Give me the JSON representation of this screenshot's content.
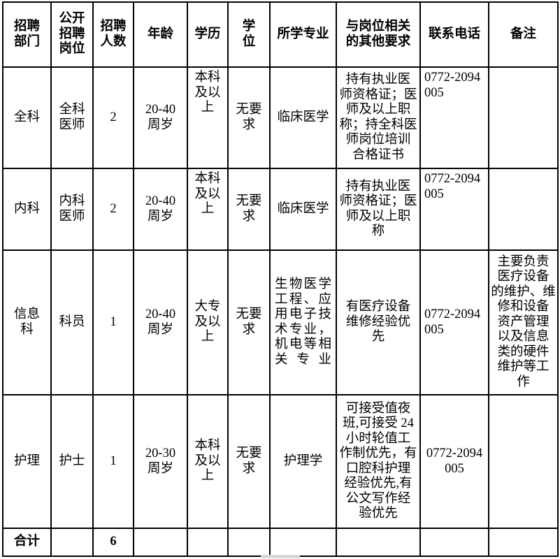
{
  "colors": {
    "border": "#000000",
    "background": "#ffffff",
    "text": "#000000"
  },
  "table": {
    "columns": [
      "招聘\n部门",
      "公开\n招聘\n岗位",
      "招聘\n人数",
      "年龄",
      "学历",
      "学\n位",
      "所学专业",
      "与岗位相关\n的其他要求",
      "联系电话",
      "备注"
    ],
    "rows": [
      {
        "cells": [
          {
            "text": "全科"
          },
          {
            "text": "全科\n医师"
          },
          {
            "text": "2"
          },
          {
            "text": "20-40\n周岁"
          },
          {
            "text": "本科\n及以\n上",
            "valign": "top"
          },
          {
            "text": "无要\n求"
          },
          {
            "text": "临床医学"
          },
          {
            "text": "持有执业医\n师资格证；医\n师及以上职\n称；持全科医\n师岗位培训\n合格证书"
          },
          {
            "text": "0772-2094\n005",
            "align": "left",
            "valign": "top"
          },
          {
            "text": ""
          }
        ]
      },
      {
        "cells": [
          {
            "text": "内科"
          },
          {
            "text": "内科\n医师"
          },
          {
            "text": "2"
          },
          {
            "text": "20-40\n周岁"
          },
          {
            "text": "本科\n及以\n上",
            "valign": "top"
          },
          {
            "text": "无要\n求"
          },
          {
            "text": "临床医学"
          },
          {
            "text": "持有执业医\n师资格证；医\n师及以上职\n称"
          },
          {
            "text": "0772-2094\n005",
            "align": "left",
            "valign": "top"
          },
          {
            "text": ""
          }
        ]
      },
      {
        "cells": [
          {
            "text": "信息\n科"
          },
          {
            "text": "科员"
          },
          {
            "text": "1"
          },
          {
            "text": "20-40\n周岁"
          },
          {
            "text": "大专\n及以\n上"
          },
          {
            "text": "无要\n求"
          },
          {
            "text": "生物医学\n工程、应\n用电子技\n术专业，\n机电等相\n关专业",
            "justify": true
          },
          {
            "text": "有医疗设备\n维修经验优\n先"
          },
          {
            "text": "0772-2094\n005",
            "align": "left"
          },
          {
            "text": "主要负责\n医疗设备\n的维护、维\n修和设备\n资产管理\n以及信息\n类的硬件\n维护等工\n作"
          }
        ]
      },
      {
        "cells": [
          {
            "text": "护理"
          },
          {
            "text": "护士"
          },
          {
            "text": "1"
          },
          {
            "text": "20-30\n周岁"
          },
          {
            "text": "本科\n及以\n上"
          },
          {
            "text": "无要\n求"
          },
          {
            "text": "护理学"
          },
          {
            "text": "可接受值夜\n班,可接受 24\n小时轮值工\n作制优先，有\n口腔科护理\n经验优先,有\n公文写作经\n验优先"
          },
          {
            "text": "0772-2094\n005"
          },
          {
            "text": ""
          }
        ]
      },
      {
        "cells": [
          {
            "text": "合计",
            "bold": true
          },
          {
            "text": ""
          },
          {
            "text": "6",
            "bold": true
          },
          {
            "text": ""
          },
          {
            "text": ""
          },
          {
            "text": ""
          },
          {
            "text": ""
          },
          {
            "text": ""
          },
          {
            "text": ""
          },
          {
            "text": ""
          }
        ]
      }
    ]
  }
}
